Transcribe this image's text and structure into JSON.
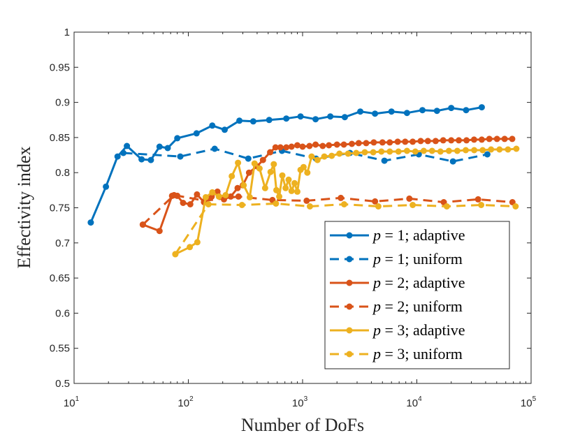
{
  "chart_data": {
    "type": "line",
    "xscale": "log",
    "xlabel": "Number of DoFs",
    "ylabel": "Effectivity index",
    "xlim": [
      10,
      100000
    ],
    "ylim": [
      0.5,
      1
    ],
    "grid": false,
    "legend_position": "bottom-right",
    "x_ticks": [
      {
        "base": "10",
        "exp": "1"
      },
      {
        "base": "10",
        "exp": "2"
      },
      {
        "base": "10",
        "exp": "3"
      },
      {
        "base": "10",
        "exp": "4"
      },
      {
        "base": "10",
        "exp": "5"
      }
    ],
    "y_ticks": [
      "0.5",
      "0.55",
      "0.6",
      "0.65",
      "0.7",
      "0.75",
      "0.8",
      "0.85",
      "0.9",
      "0.95",
      "1"
    ],
    "series": [
      {
        "name": "p = 1; adaptive",
        "legend_var": "p",
        "legend_rest": " = 1; adaptive",
        "color": "#0072BD",
        "dash": "solid",
        "x": [
          14,
          19,
          24,
          29,
          39,
          47,
          56,
          66,
          80,
          118,
          162,
          208,
          280,
          370,
          510,
          720,
          960,
          1300,
          1750,
          2340,
          3200,
          4300,
          6000,
          8200,
          11200,
          15000,
          20000,
          27000,
          37000
        ],
        "y": [
          0.729,
          0.78,
          0.823,
          0.838,
          0.819,
          0.818,
          0.837,
          0.835,
          0.849,
          0.856,
          0.867,
          0.861,
          0.874,
          0.873,
          0.875,
          0.877,
          0.88,
          0.876,
          0.88,
          0.879,
          0.887,
          0.884,
          0.887,
          0.885,
          0.889,
          0.888,
          0.892,
          0.889,
          0.893
        ]
      },
      {
        "name": "p = 1; uniform",
        "legend_var": "p",
        "legend_rest": " = 1; uniform",
        "color": "#0072BD",
        "dash": "dashed",
        "x": [
          27,
          85,
          170,
          335,
          660,
          1310,
          2600,
          5200,
          10400,
          20700,
          41400
        ],
        "y": [
          0.828,
          0.823,
          0.834,
          0.82,
          0.831,
          0.82,
          0.828,
          0.817,
          0.826,
          0.816,
          0.826
        ]
      },
      {
        "name": "p = 2; adaptive",
        "legend_var": "p",
        "legend_rest": " = 2; adaptive",
        "color": "#D95319",
        "dash": "solid",
        "x": [
          40,
          56,
          72,
          80,
          90,
          104,
          119,
          137,
          160,
          180,
          205,
          235,
          270,
          300,
          340,
          400,
          450,
          520,
          580,
          640,
          720,
          800,
          900,
          1000,
          1150,
          1300,
          1500,
          1700,
          2000,
          2300,
          2700,
          3100,
          3600,
          4200,
          5000,
          5800,
          6800,
          7900,
          9200,
          10800,
          12500,
          14600,
          17000,
          20000,
          23300,
          27200,
          31700,
          37000,
          43100,
          50300,
          58600,
          68400
        ],
        "y": [
          0.726,
          0.717,
          0.767,
          0.767,
          0.757,
          0.755,
          0.769,
          0.758,
          0.766,
          0.773,
          0.762,
          0.766,
          0.778,
          0.782,
          0.8,
          0.809,
          0.818,
          0.829,
          0.836,
          0.836,
          0.836,
          0.837,
          0.839,
          0.837,
          0.838,
          0.84,
          0.838,
          0.839,
          0.84,
          0.84,
          0.841,
          0.842,
          0.842,
          0.843,
          0.843,
          0.843,
          0.844,
          0.844,
          0.844,
          0.845,
          0.845,
          0.845,
          0.846,
          0.846,
          0.846,
          0.846,
          0.847,
          0.847,
          0.848,
          0.848,
          0.848,
          0.848
        ]
      },
      {
        "name": "p = 2; uniform",
        "legend_var": "p",
        "legend_rest": " = 2; uniform",
        "color": "#D95319",
        "dash": "dashed",
        "x": [
          40,
          75,
          140,
          275,
          545,
          1085,
          2160,
          4310,
          8600,
          17200,
          34400,
          68700
        ],
        "y": [
          0.726,
          0.768,
          0.76,
          0.766,
          0.761,
          0.76,
          0.764,
          0.759,
          0.763,
          0.758,
          0.762,
          0.758
        ]
      },
      {
        "name": "p = 3; adaptive",
        "legend_var": "p",
        "legend_rest": " = 3; adaptive",
        "color": "#EDB120",
        "dash": "solid",
        "x": [
          77,
          103,
          120,
          142,
          162,
          185,
          212,
          240,
          272,
          305,
          345,
          380,
          420,
          470,
          525,
          560,
          590,
          625,
          665,
          710,
          755,
          800,
          850,
          900,
          960,
          1020,
          1100,
          1200,
          1350,
          1550,
          1800,
          2100,
          2500,
          2950,
          3500,
          4150,
          4900,
          5800,
          6900,
          8200,
          9700,
          11500,
          13600,
          16100,
          19100,
          22600,
          26800,
          31800,
          37700,
          44600,
          52900,
          62700,
          74300
        ],
        "y": [
          0.684,
          0.694,
          0.701,
          0.765,
          0.772,
          0.766,
          0.768,
          0.795,
          0.814,
          0.782,
          0.765,
          0.813,
          0.806,
          0.778,
          0.801,
          0.812,
          0.775,
          0.766,
          0.796,
          0.778,
          0.79,
          0.774,
          0.785,
          0.773,
          0.804,
          0.808,
          0.8,
          0.823,
          0.818,
          0.823,
          0.824,
          0.827,
          0.827,
          0.828,
          0.829,
          0.829,
          0.83,
          0.83,
          0.83,
          0.831,
          0.83,
          0.831,
          0.831,
          0.83,
          0.831,
          0.831,
          0.832,
          0.832,
          0.832,
          0.833,
          0.833,
          0.833,
          0.834
        ]
      },
      {
        "name": "p = 3; uniform",
        "legend_var": "p",
        "legend_rest": " = 3; uniform",
        "color": "#EDB120",
        "dash": "dashed",
        "x": [
          77,
          150,
          295,
          585,
          1160,
          2310,
          4600,
          9200,
          18300,
          36600,
          73100
        ],
        "y": [
          0.684,
          0.755,
          0.754,
          0.756,
          0.752,
          0.755,
          0.752,
          0.754,
          0.752,
          0.754,
          0.752
        ]
      }
    ]
  }
}
